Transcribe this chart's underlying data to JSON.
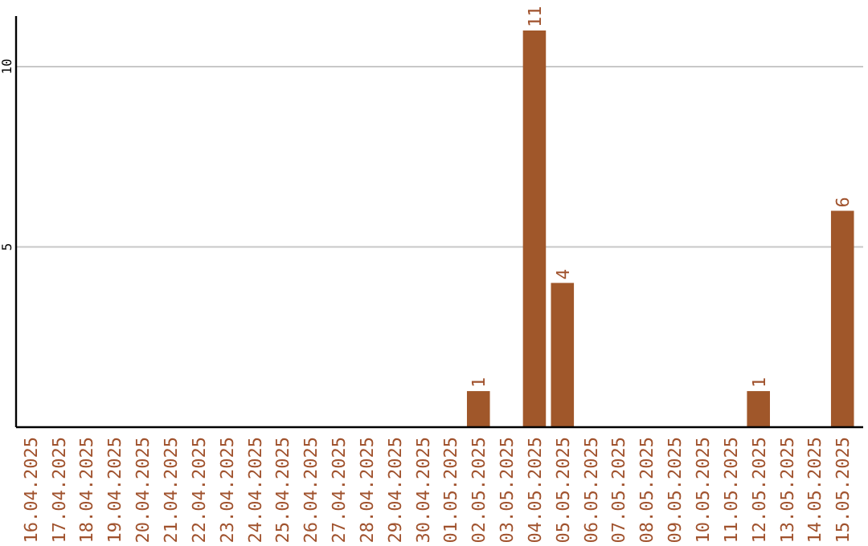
{
  "chart_data": {
    "type": "bar",
    "categories": [
      "16.04.2025",
      "17.04.2025",
      "18.04.2025",
      "19.04.2025",
      "20.04.2025",
      "21.04.2025",
      "22.04.2025",
      "23.04.2025",
      "24.04.2025",
      "25.04.2025",
      "26.04.2025",
      "27.04.2025",
      "28.04.2025",
      "29.04.2025",
      "30.04.2025",
      "01.05.2025",
      "02.05.2025",
      "03.05.2025",
      "04.05.2025",
      "05.05.2025",
      "06.05.2025",
      "07.05.2025",
      "08.05.2025",
      "09.05.2025",
      "10.05.2025",
      "11.05.2025",
      "12.05.2025",
      "13.05.2025",
      "14.05.2025",
      "15.05.2025"
    ],
    "values": [
      0,
      0,
      0,
      0,
      0,
      0,
      0,
      0,
      0,
      0,
      0,
      0,
      0,
      0,
      0,
      0,
      1,
      0,
      11,
      4,
      0,
      0,
      0,
      0,
      0,
      0,
      1,
      0,
      0,
      6
    ],
    "value_labels": [
      null,
      null,
      null,
      null,
      null,
      null,
      null,
      null,
      null,
      null,
      null,
      null,
      null,
      null,
      null,
      null,
      "1",
      null,
      "11",
      "4",
      null,
      null,
      null,
      null,
      null,
      null,
      "1",
      null,
      null,
      "6"
    ],
    "color": "#a0572a",
    "ylim": [
      0,
      11.4
    ],
    "yticks": [
      5,
      10
    ],
    "grid": "y"
  }
}
